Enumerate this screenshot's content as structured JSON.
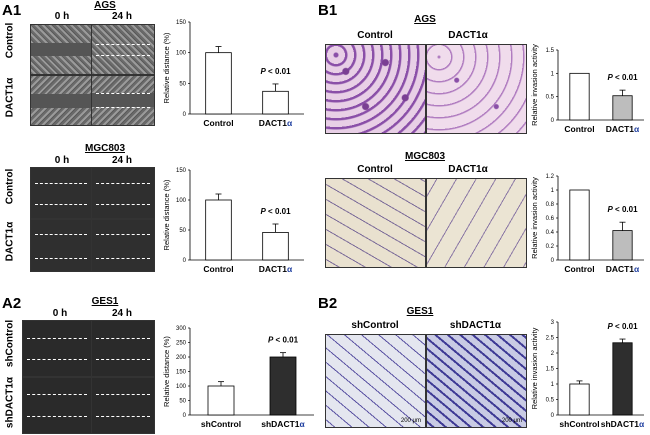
{
  "panels": {
    "a1": "A1",
    "a2": "A2",
    "b1": "B1",
    "b2": "B2"
  },
  "wound": {
    "time_0": "0 h",
    "time_24": "24 h",
    "ags_title": "AGS",
    "mgc_title": "MGC803",
    "ges_title": "GES1",
    "row_control": "Control",
    "row_dact": "DACT1α",
    "row_shcontrol": "shControl",
    "row_shdact": "shDACT1α"
  },
  "invasion": {
    "ags_title": "AGS",
    "mgc_title": "MGC803",
    "ges_title": "GES1",
    "col_control": "Control",
    "col_dact": "DACT1α",
    "col_shcontrol": "shControl",
    "col_shdact": "shDACT1α",
    "scale_left": "200 μm",
    "scale_right": "200 μm"
  },
  "colors": {
    "bar_white": "#ffffff",
    "bar_gray": "#bdbdbd",
    "bar_dark": "#2e2e2e",
    "alpha_blue": "#1f3fa0",
    "invasion_stain_purple": "#7a4fa0"
  },
  "chart_data": [
    {
      "id": "a1-ags",
      "type": "bar",
      "categories": [
        "Control",
        "DACT1α"
      ],
      "values": [
        100,
        37
      ],
      "errors": [
        10,
        12
      ],
      "fills": [
        "#ffffff",
        "#ffffff"
      ],
      "ylabel": "Relative distance (%)",
      "ylim": [
        0,
        150
      ],
      "yticks": [
        "0",
        "50",
        "100",
        "150"
      ],
      "annotation": "P < 0.01"
    },
    {
      "id": "a1-mgc",
      "type": "bar",
      "categories": [
        "Control",
        "DACT1α"
      ],
      "values": [
        100,
        46
      ],
      "errors": [
        10,
        14
      ],
      "fills": [
        "#ffffff",
        "#ffffff"
      ],
      "ylabel": "Relative distance (%)",
      "ylim": [
        0,
        150
      ],
      "yticks": [
        "0",
        "50",
        "100",
        "150"
      ],
      "annotation": "P < 0.01"
    },
    {
      "id": "a2-ges",
      "type": "bar",
      "categories": [
        "shControl",
        "shDACT1α"
      ],
      "values": [
        100,
        200
      ],
      "errors": [
        15,
        15
      ],
      "fills": [
        "#ffffff",
        "#2e2e2e"
      ],
      "ylabel": "Relative distance (%)",
      "ylim": [
        0,
        300
      ],
      "yticks": [
        "0",
        "50",
        "100",
        "150",
        "200",
        "250",
        "300"
      ],
      "annotation": "P < 0.01"
    },
    {
      "id": "b1-ags",
      "type": "bar",
      "categories": [
        "Control",
        "DACT1α"
      ],
      "values": [
        1.0,
        0.52
      ],
      "errors": [
        0,
        0.12
      ],
      "fills": [
        "#ffffff",
        "#bdbdbd"
      ],
      "ylabel": "Relative invasion activity",
      "ylim": [
        0,
        1.5
      ],
      "yticks": [
        "0",
        "0.5",
        "1",
        "1.5"
      ],
      "annotation": "P < 0.01"
    },
    {
      "id": "b1-mgc",
      "type": "bar",
      "categories": [
        "Control",
        "DACT1α"
      ],
      "values": [
        1.0,
        0.42
      ],
      "errors": [
        0,
        0.12
      ],
      "fills": [
        "#ffffff",
        "#bdbdbd"
      ],
      "ylabel": "Relative invasion activity",
      "ylim": [
        0,
        1.2
      ],
      "yticks": [
        "0",
        "0.2",
        "0.4",
        "0.6",
        "0.8",
        "1",
        "1.2"
      ],
      "annotation": "P < 0.01"
    },
    {
      "id": "b2-ges",
      "type": "bar",
      "categories": [
        "shControl",
        "shDACT1α"
      ],
      "values": [
        1.0,
        2.33
      ],
      "errors": [
        0.1,
        0.12
      ],
      "fills": [
        "#ffffff",
        "#2e2e2e"
      ],
      "ylabel": "Relative invasion activity",
      "ylim": [
        0,
        3
      ],
      "yticks": [
        "0",
        "0.5",
        "1",
        "1.5",
        "2",
        "2.5",
        "3"
      ],
      "annotation": "P < 0.01"
    }
  ]
}
